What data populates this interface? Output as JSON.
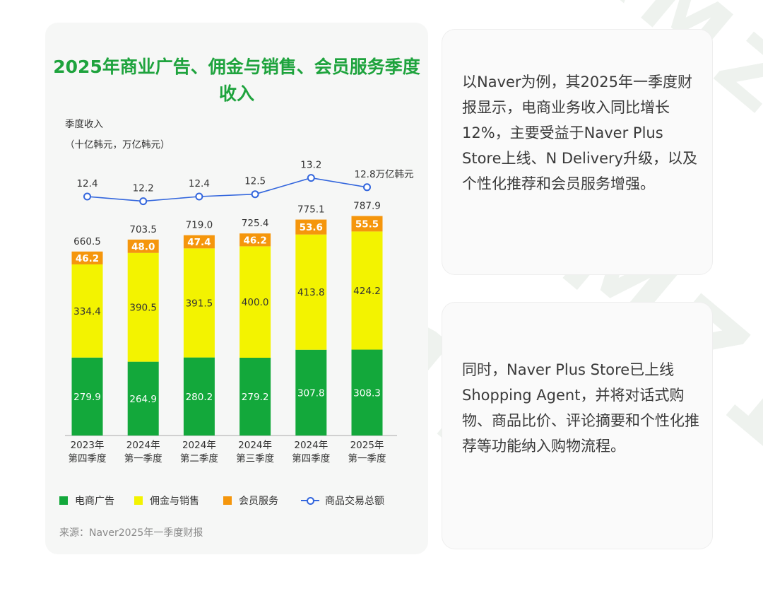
{
  "chart_data": {
    "type": "bar",
    "title": "2025年商业广告、佣金与销售、会员服务季度收入",
    "ylabel_line1": "季度收入",
    "ylabel_line2": "（十亿韩元，万亿韩元）",
    "categories": [
      [
        "2023年",
        "第四季度"
      ],
      [
        "2024年",
        "第一季度"
      ],
      [
        "2024年",
        "第二季度"
      ],
      [
        "2024年",
        "第三季度"
      ],
      [
        "2024年",
        "第四季度"
      ],
      [
        "2025年",
        "第一季度"
      ]
    ],
    "series": [
      {
        "name": "电商广告",
        "color": "#13a83b",
        "values": [
          279.9,
          264.9,
          280.2,
          279.2,
          307.8,
          308.3
        ]
      },
      {
        "name": "佣金与销售",
        "color": "#f3f300",
        "values": [
          334.4,
          390.5,
          391.5,
          400.0,
          413.8,
          424.2
        ]
      },
      {
        "name": "会员服务",
        "color": "#f5960c",
        "values": [
          46.2,
          48.0,
          47.4,
          46.2,
          53.6,
          55.5
        ]
      }
    ],
    "totals": [
      "660.5",
      "703.5",
      "719.0",
      "725.4",
      "775.1",
      "787.9"
    ],
    "line": {
      "name": "商品交易总额",
      "color": "#3366dd",
      "values": [
        12.4,
        12.2,
        12.4,
        12.5,
        13.2,
        12.8
      ],
      "labels": [
        "12.4",
        "12.2",
        "12.4",
        "12.5",
        "13.2",
        "12.8万亿韩元"
      ]
    },
    "legend_position": "bottom",
    "grid": false
  },
  "source": "来源：Naver2025年一季度财报",
  "right_panels": [
    {
      "text": "以Naver为例，其2025年一季度财报显示，电商业务收入同比增长12%，主要受益于Naver Plus Store上线、N Delivery升级，以及个性化推荐和会员服务增强。"
    },
    {
      "text": "同时，Naver Plus Store已上线Shopping Agent，并将对话式购物、商品比价、评论摘要和个性化推荐等功能纳入购物流程。"
    }
  ],
  "watermark": "AMZ123"
}
